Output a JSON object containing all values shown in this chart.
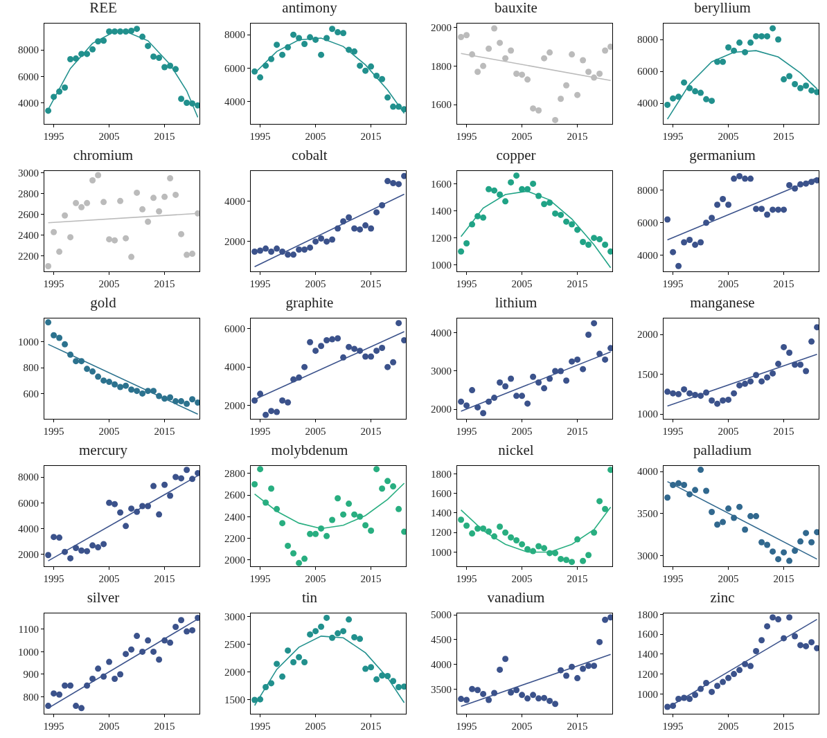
{
  "chart_data": [
    {
      "type": "scatter",
      "title": "REE",
      "x": [
        1994,
        1995,
        1996,
        1997,
        1998,
        1999,
        2000,
        2001,
        2002,
        2003,
        2004,
        2005,
        2006,
        2007,
        2008,
        2009,
        2010,
        2011,
        2012,
        2013,
        2014,
        2015,
        2016,
        2017,
        2018,
        2019,
        2020,
        2021
      ],
      "xlim": [
        1993.3,
        2021.3
      ],
      "xticks": [
        1995,
        2005,
        2015
      ],
      "ylim": [
        2400,
        10000
      ],
      "yticks": [
        4000,
        6000,
        8000
      ],
      "series": [
        {
          "marker": "circle",
          "color": "#21908d",
          "values": [
            3400,
            4450,
            4850,
            5150,
            7300,
            7350,
            7700,
            7700,
            8050,
            8650,
            8700,
            9400,
            9400,
            9400,
            9400,
            9450,
            9600,
            9000,
            8300,
            7500,
            7400,
            6700,
            6800,
            6550,
            4300,
            4000,
            3950,
            3800
          ]
        },
        {
          "type": "line",
          "color": "#21908d",
          "x": [
            1994,
            1998,
            2002,
            2006,
            2008,
            2012,
            2016,
            2019,
            2021
          ],
          "values": [
            3500,
            6600,
            8500,
            9400,
            9400,
            8700,
            6900,
            4900,
            2900
          ]
        }
      ]
    },
    {
      "type": "scatter",
      "title": "antimony",
      "x": [
        1994,
        1995,
        1996,
        1997,
        1998,
        1999,
        2000,
        2001,
        2002,
        2003,
        2004,
        2005,
        2006,
        2007,
        2008,
        2009,
        2010,
        2011,
        2012,
        2013,
        2014,
        2015,
        2016,
        2017,
        2018,
        2019,
        2020,
        2021
      ],
      "xlim": [
        1993.3,
        2021.3
      ],
      "xticks": [
        1995,
        2005,
        2015
      ],
      "ylim": [
        2670,
        8670
      ],
      "yticks": [
        4000,
        6000,
        8000
      ],
      "series": [
        {
          "marker": "circle",
          "color": "#21908d",
          "values": [
            5800,
            5450,
            6150,
            6550,
            7400,
            6800,
            7250,
            8000,
            7800,
            7450,
            7850,
            7700,
            6800,
            7800,
            8350,
            8150,
            8100,
            7100,
            7000,
            6150,
            5850,
            6100,
            5550,
            5350,
            4250,
            3700,
            3700,
            3550
          ]
        },
        {
          "type": "line",
          "color": "#21908d",
          "x": [
            1994,
            1998,
            2002,
            2006,
            2010,
            2014,
            2018,
            2021
          ],
          "values": [
            5700,
            7000,
            7700,
            7800,
            7300,
            6200,
            4700,
            3300
          ]
        }
      ]
    },
    {
      "type": "scatter",
      "title": "bauxite",
      "x": [
        1994,
        1995,
        1996,
        1997,
        1998,
        1999,
        2000,
        2001,
        2002,
        2003,
        2004,
        2005,
        2006,
        2007,
        2008,
        2009,
        2010,
        2011,
        2012,
        2013,
        2014,
        2015,
        2016,
        2017,
        2018,
        2019,
        2020,
        2021
      ],
      "xlim": [
        1993.3,
        2021.3
      ],
      "xticks": [
        1995,
        2005,
        2015
      ],
      "ylim": [
        1500,
        2020
      ],
      "yticks": [
        1600,
        1800,
        2000
      ],
      "series": [
        {
          "marker": "circle",
          "color": "#bbbbbb",
          "values": [
            1950,
            1960,
            1860,
            1770,
            1800,
            1890,
            1995,
            1920,
            1840,
            1880,
            1760,
            1755,
            1730,
            1580,
            1570,
            1840,
            1870,
            1520,
            1630,
            1700,
            1860,
            1650,
            1830,
            1770,
            1740,
            1760,
            1880,
            1900
          ]
        },
        {
          "type": "line",
          "color": "#bbbbbb",
          "x": [
            1994,
            2021
          ],
          "values": [
            1865,
            1725
          ]
        }
      ]
    },
    {
      "type": "scatter",
      "title": "beryllium",
      "x": [
        1994,
        1995,
        1996,
        1997,
        1998,
        1999,
        2000,
        2001,
        2002,
        2003,
        2004,
        2005,
        2006,
        2007,
        2008,
        2009,
        2010,
        2011,
        2012,
        2013,
        2014,
        2015,
        2016,
        2017,
        2018,
        2019,
        2020,
        2021
      ],
      "xlim": [
        1993.3,
        2021.3
      ],
      "xticks": [
        1995,
        2005,
        2015
      ],
      "ylim": [
        2700,
        9000
      ],
      "yticks": [
        4000,
        6000,
        8000
      ],
      "series": [
        {
          "marker": "circle",
          "color": "#21908d",
          "values": [
            3900,
            4300,
            4400,
            5300,
            4950,
            4750,
            4650,
            4250,
            4150,
            6600,
            6600,
            7500,
            7300,
            7800,
            7200,
            7800,
            8200,
            8200,
            8200,
            8700,
            8000,
            5500,
            5700,
            5200,
            4950,
            5100,
            4800,
            4700
          ]
        },
        {
          "type": "line",
          "color": "#21908d",
          "x": [
            1994,
            1998,
            2002,
            2006,
            2010,
            2014,
            2018,
            2021
          ],
          "values": [
            3000,
            5200,
            6600,
            7200,
            7300,
            6900,
            5900,
            4900
          ]
        }
      ]
    },
    {
      "type": "scatter",
      "title": "chromium",
      "x": [
        1994,
        1995,
        1996,
        1997,
        1998,
        1999,
        2000,
        2001,
        2002,
        2003,
        2004,
        2005,
        2006,
        2007,
        2008,
        2009,
        2010,
        2011,
        2012,
        2013,
        2014,
        2015,
        2016,
        2017,
        2018,
        2019,
        2020,
        2021
      ],
      "xlim": [
        1993.3,
        2021.3
      ],
      "xticks": [
        1995,
        2005,
        2015
      ],
      "ylim": [
        2050,
        3020
      ],
      "yticks": [
        2200,
        2400,
        2600,
        2800,
        3000
      ],
      "series": [
        {
          "marker": "circle",
          "color": "#bbbbbb",
          "values": [
            2100,
            2430,
            2240,
            2590,
            2380,
            2710,
            2670,
            2710,
            2930,
            2980,
            2720,
            2360,
            2350,
            2730,
            2370,
            2190,
            2810,
            2650,
            2530,
            2760,
            2630,
            2770,
            2950,
            2790,
            2410,
            2210,
            2220,
            2610
          ]
        },
        {
          "type": "line",
          "color": "#bbbbbb",
          "x": [
            1994,
            2021
          ],
          "values": [
            2520,
            2610
          ]
        }
      ]
    },
    {
      "type": "scatter",
      "title": "cobalt",
      "x": [
        1994,
        1995,
        1996,
        1997,
        1998,
        1999,
        2000,
        2001,
        2002,
        2003,
        2004,
        2005,
        2006,
        2007,
        2008,
        2009,
        2010,
        2011,
        2012,
        2013,
        2014,
        2015,
        2016,
        2017,
        2018,
        2019,
        2020,
        2021
      ],
      "xlim": [
        1993.3,
        2021.3
      ],
      "xticks": [
        1995,
        2005,
        2015
      ],
      "ylim": [
        520,
        5500
      ],
      "yticks": [
        2000,
        4000
      ],
      "series": [
        {
          "marker": "circle",
          "color": "#3b528b",
          "values": [
            1500,
            1550,
            1650,
            1500,
            1650,
            1500,
            1350,
            1350,
            1600,
            1600,
            1700,
            2000,
            2150,
            2000,
            2100,
            2650,
            3000,
            3200,
            2650,
            2600,
            2800,
            2650,
            3450,
            3800,
            5000,
            4900,
            4850,
            5250
          ]
        },
        {
          "type": "line",
          "color": "#3b528b",
          "x": [
            1994,
            2021
          ],
          "values": [
            750,
            4350
          ]
        }
      ]
    },
    {
      "type": "scatter",
      "title": "copper",
      "x": [
        1994,
        1995,
        1996,
        1997,
        1998,
        1999,
        2000,
        2001,
        2002,
        2003,
        2004,
        2005,
        2006,
        2007,
        2008,
        2009,
        2010,
        2011,
        2012,
        2013,
        2014,
        2015,
        2016,
        2017,
        2018,
        2019,
        2020,
        2021
      ],
      "xlim": [
        1993.3,
        2021.3
      ],
      "xticks": [
        1995,
        2005,
        2015
      ],
      "ylim": [
        953,
        1694
      ],
      "yticks": [
        1000,
        1200,
        1400,
        1600
      ],
      "series": [
        {
          "marker": "circle",
          "color": "#20a386",
          "values": [
            1100,
            1160,
            1300,
            1360,
            1350,
            1560,
            1550,
            1520,
            1470,
            1610,
            1660,
            1560,
            1560,
            1600,
            1510,
            1450,
            1460,
            1380,
            1370,
            1320,
            1300,
            1260,
            1170,
            1150,
            1200,
            1190,
            1150,
            1100
          ]
        },
        {
          "type": "line",
          "color": "#20a386",
          "x": [
            1994,
            1998,
            2002,
            2006,
            2010,
            2014,
            2018,
            2021
          ],
          "values": [
            1210,
            1420,
            1520,
            1545,
            1480,
            1340,
            1150,
            980
          ]
        }
      ]
    },
    {
      "type": "scatter",
      "title": "germanium",
      "x": [
        1994,
        1995,
        1996,
        1997,
        1998,
        1999,
        2000,
        2001,
        2002,
        2003,
        2004,
        2005,
        2006,
        2007,
        2008,
        2009,
        2010,
        2011,
        2012,
        2013,
        2014,
        2015,
        2016,
        2017,
        2018,
        2019,
        2020,
        2021
      ],
      "xlim": [
        1993.3,
        2021.3
      ],
      "xticks": [
        1995,
        2005,
        2015
      ],
      "ylim": [
        3020,
        9170
      ],
      "yticks": [
        4000,
        6000,
        8000
      ],
      "series": [
        {
          "marker": "circle",
          "color": "#3b528b",
          "values": [
            6200,
            4200,
            3350,
            4800,
            4950,
            4650,
            4800,
            6000,
            6300,
            7100,
            7450,
            7100,
            8700,
            8850,
            8700,
            8700,
            6850,
            6850,
            6500,
            6800,
            6800,
            6800,
            8300,
            8100,
            8350,
            8400,
            8500,
            8600
          ]
        },
        {
          "type": "line",
          "color": "#3b528b",
          "x": [
            1994,
            2021
          ],
          "values": [
            4950,
            8750
          ]
        }
      ]
    },
    {
      "type": "scatter",
      "title": "gold",
      "x": [
        1994,
        1995,
        1996,
        1997,
        1998,
        1999,
        2000,
        2001,
        2002,
        2003,
        2004,
        2005,
        2006,
        2007,
        2008,
        2009,
        2010,
        2011,
        2012,
        2013,
        2014,
        2015,
        2016,
        2017,
        2018,
        2019,
        2020,
        2021
      ],
      "xlim": [
        1993.3,
        2021.3
      ],
      "xticks": [
        1995,
        2005,
        2015
      ],
      "ylim": [
        404,
        1180
      ],
      "yticks": [
        600,
        800,
        1000
      ],
      "series": [
        {
          "marker": "circle",
          "color": "#2c728e",
          "values": [
            1150,
            1050,
            1030,
            980,
            900,
            850,
            850,
            790,
            770,
            730,
            700,
            690,
            670,
            650,
            660,
            630,
            620,
            600,
            620,
            620,
            580,
            560,
            570,
            540,
            540,
            520,
            555,
            530
          ]
        },
        {
          "type": "line",
          "color": "#2c728e",
          "x": [
            1994,
            2021
          ],
          "values": [
            980,
            440
          ]
        }
      ]
    },
    {
      "type": "scatter",
      "title": "graphite",
      "x": [
        1994,
        1995,
        1996,
        1997,
        1998,
        1999,
        2000,
        2001,
        2002,
        2003,
        2004,
        2005,
        2006,
        2007,
        2008,
        2009,
        2010,
        2011,
        2012,
        2013,
        2014,
        2015,
        2016,
        2017,
        2018,
        2019,
        2020,
        2021
      ],
      "xlim": [
        1993.3,
        2021.3
      ],
      "xticks": [
        1995,
        2005,
        2015
      ],
      "ylim": [
        1290,
        6540
      ],
      "yticks": [
        2000,
        4000,
        6000
      ],
      "series": [
        {
          "marker": "circle",
          "color": "#3b528b",
          "values": [
            2250,
            2600,
            1500,
            1700,
            1650,
            2250,
            2150,
            3350,
            3450,
            4000,
            5300,
            4850,
            5100,
            5400,
            5450,
            5500,
            4500,
            5050,
            4950,
            4850,
            4550,
            4550,
            4850,
            5000,
            4000,
            4250,
            6300,
            5400
          ]
        },
        {
          "type": "line",
          "color": "#3b528b",
          "x": [
            1994,
            2021
          ],
          "values": [
            2300,
            5850
          ]
        }
      ]
    },
    {
      "type": "scatter",
      "title": "lithium",
      "x": [
        1994,
        1995,
        1996,
        1997,
        1998,
        1999,
        2000,
        2001,
        2002,
        2003,
        2004,
        2005,
        2006,
        2007,
        2008,
        2009,
        2010,
        2011,
        2012,
        2013,
        2014,
        2015,
        2016,
        2017,
        2018,
        2019,
        2020,
        2021
      ],
      "xlim": [
        1993.3,
        2021.3
      ],
      "xticks": [
        1995,
        2005,
        2015
      ],
      "ylim": [
        1750,
        4375
      ],
      "yticks": [
        2000,
        3000,
        4000
      ],
      "series": [
        {
          "marker": "circle",
          "color": "#3b528b",
          "values": [
            2200,
            2100,
            2500,
            2050,
            1900,
            2200,
            2300,
            2700,
            2600,
            2800,
            2350,
            2350,
            2150,
            2850,
            2700,
            2550,
            2800,
            3000,
            3000,
            2750,
            3250,
            3300,
            3050,
            3950,
            4250,
            3450,
            3300,
            3600
          ]
        },
        {
          "type": "line",
          "color": "#3b528b",
          "x": [
            1994,
            2021
          ],
          "values": [
            1950,
            3500
          ]
        }
      ]
    },
    {
      "type": "scatter",
      "title": "manganese",
      "x": [
        1994,
        1995,
        1996,
        1997,
        1998,
        1999,
        2000,
        2001,
        2002,
        2003,
        2004,
        2005,
        2006,
        2007,
        2008,
        2009,
        2010,
        2011,
        2012,
        2013,
        2014,
        2015,
        2016,
        2017,
        2018,
        2019,
        2020,
        2021
      ],
      "xlim": [
        1993.3,
        2021.3
      ],
      "xticks": [
        1995,
        2005,
        2015
      ],
      "ylim": [
        940,
        2200
      ],
      "yticks": [
        1000,
        1500,
        2000
      ],
      "series": [
        {
          "marker": "circle",
          "color": "#3b528b",
          "values": [
            1280,
            1260,
            1250,
            1310,
            1260,
            1240,
            1230,
            1270,
            1170,
            1130,
            1170,
            1180,
            1260,
            1360,
            1380,
            1410,
            1490,
            1410,
            1460,
            1510,
            1630,
            1840,
            1770,
            1620,
            1620,
            1540,
            1910,
            2090
          ]
        },
        {
          "type": "line",
          "color": "#3b528b",
          "x": [
            1994,
            2021
          ],
          "values": [
            1100,
            1750
          ]
        }
      ]
    },
    {
      "type": "scatter",
      "title": "mercury",
      "x": [
        1994,
        1995,
        1996,
        1997,
        1998,
        1999,
        2000,
        2001,
        2002,
        2003,
        2004,
        2005,
        2006,
        2007,
        2008,
        2009,
        2010,
        2011,
        2012,
        2013,
        2014,
        2015,
        2016,
        2017,
        2018,
        2019,
        2020,
        2021
      ],
      "xlim": [
        1993.3,
        2021.3
      ],
      "xticks": [
        1995,
        2005,
        2015
      ],
      "ylim": [
        1080,
        8860
      ],
      "yticks": [
        2000,
        4000,
        6000,
        8000
      ],
      "series": [
        {
          "marker": "circle",
          "color": "#3b528b",
          "values": [
            1950,
            3350,
            3300,
            2200,
            1700,
            2500,
            2300,
            2250,
            2700,
            2550,
            2800,
            6000,
            5900,
            5250,
            4200,
            5550,
            5300,
            5750,
            5750,
            7300,
            5100,
            7400,
            6550,
            8000,
            7900,
            8550,
            7850,
            8300
          ]
        },
        {
          "type": "line",
          "color": "#3b528b",
          "x": [
            1994,
            2021
          ],
          "values": [
            1500,
            8100
          ]
        }
      ]
    },
    {
      "type": "scatter",
      "title": "molybdenum",
      "x": [
        1994,
        1995,
        1996,
        1997,
        1998,
        1999,
        2000,
        2001,
        2002,
        2003,
        2004,
        2005,
        2006,
        2007,
        2008,
        2009,
        2010,
        2011,
        2012,
        2013,
        2014,
        2015,
        2016,
        2017,
        2018,
        2019,
        2020,
        2021
      ],
      "xlim": [
        1993.3,
        2021.3
      ],
      "xticks": [
        1995,
        2005,
        2015
      ],
      "ylim": [
        1940,
        2870
      ],
      "yticks": [
        2000,
        2200,
        2400,
        2600,
        2800
      ],
      "series": [
        {
          "marker": "circle",
          "color": "#28ae80",
          "values": [
            2700,
            2840,
            2530,
            2660,
            2470,
            2340,
            2130,
            2060,
            1970,
            2010,
            2240,
            2240,
            2290,
            2220,
            2370,
            2570,
            2420,
            2520,
            2420,
            2400,
            2320,
            2270,
            2840,
            2660,
            2730,
            2680,
            2470,
            2260
          ]
        },
        {
          "type": "line",
          "color": "#28ae80",
          "x": [
            1994,
            1998,
            2002,
            2006,
            2010,
            2014,
            2018,
            2021
          ],
          "values": [
            2610,
            2450,
            2340,
            2290,
            2320,
            2410,
            2560,
            2710
          ]
        }
      ]
    },
    {
      "type": "scatter",
      "title": "nickel",
      "x": [
        1994,
        1995,
        1996,
        1997,
        1998,
        1999,
        2000,
        2001,
        2002,
        2003,
        2004,
        2005,
        2006,
        2007,
        2008,
        2009,
        2010,
        2011,
        2012,
        2013,
        2014,
        2015,
        2016,
        2017,
        2018,
        2019,
        2020,
        2021
      ],
      "xlim": [
        1993.3,
        2021.3
      ],
      "xticks": [
        1995,
        2005,
        2015
      ],
      "ylim": [
        855,
        1880
      ],
      "yticks": [
        1000,
        1200,
        1400,
        1600,
        1800
      ],
      "series": [
        {
          "marker": "circle",
          "color": "#28ae80",
          "values": [
            1330,
            1270,
            1190,
            1240,
            1240,
            1210,
            1160,
            1260,
            1200,
            1150,
            1120,
            1080,
            1030,
            1010,
            1060,
            1040,
            990,
            990,
            930,
            920,
            900,
            1130,
            910,
            970,
            1200,
            1520,
            1440,
            1840
          ]
        },
        {
          "type": "line",
          "color": "#28ae80",
          "x": [
            1994,
            1998,
            2002,
            2006,
            2010,
            2014,
            2018,
            2021
          ],
          "values": [
            1430,
            1220,
            1080,
            1000,
            1000,
            1080,
            1230,
            1460
          ]
        }
      ]
    },
    {
      "type": "scatter",
      "title": "palladium",
      "x": [
        1994,
        1995,
        1996,
        1997,
        1998,
        1999,
        2000,
        2001,
        2002,
        2003,
        2004,
        2005,
        2006,
        2007,
        2008,
        2009,
        2010,
        2011,
        2012,
        2013,
        2014,
        2015,
        2016,
        2017,
        2018,
        2019,
        2020,
        2021
      ],
      "xlim": [
        1993.3,
        2021.3
      ],
      "xticks": [
        1995,
        2005,
        2015
      ],
      "ylim": [
        2875,
        4066
      ],
      "yticks": [
        3000,
        3500,
        4000
      ],
      "series": [
        {
          "marker": "circle",
          "color": "#31688e",
          "values": [
            3690,
            3840,
            3860,
            3840,
            3730,
            3780,
            4020,
            3770,
            3520,
            3370,
            3400,
            3560,
            3450,
            3580,
            3310,
            3470,
            3470,
            3160,
            3130,
            3050,
            2960,
            3040,
            2940,
            3060,
            3170,
            3270,
            3160,
            3280
          ]
        },
        {
          "type": "line",
          "color": "#31688e",
          "x": [
            1994,
            2021
          ],
          "values": [
            3880,
            2960
          ]
        }
      ]
    },
    {
      "type": "scatter",
      "title": "silver",
      "x": [
        1994,
        1995,
        1996,
        1997,
        1998,
        1999,
        2000,
        2001,
        2002,
        2003,
        2004,
        2005,
        2006,
        2007,
        2008,
        2009,
        2010,
        2011,
        2012,
        2013,
        2014,
        2015,
        2016,
        2017,
        2018,
        2019,
        2020,
        2021
      ],
      "xlim": [
        1993.3,
        2021.3
      ],
      "xticks": [
        1995,
        2005,
        2015
      ],
      "ylim": [
        725,
        1170
      ],
      "yticks": [
        800,
        900,
        1000,
        1100
      ],
      "series": [
        {
          "marker": "circle",
          "color": "#3b528b",
          "values": [
            760,
            815,
            810,
            850,
            850,
            760,
            750,
            850,
            880,
            925,
            890,
            955,
            880,
            900,
            990,
            1010,
            1070,
            1000,
            1050,
            1000,
            965,
            1050,
            1040,
            1110,
            1140,
            1090,
            1095,
            1150
          ]
        },
        {
          "type": "line",
          "color": "#3b528b",
          "x": [
            1994,
            2021
          ],
          "values": [
            750,
            1145
          ]
        }
      ]
    },
    {
      "type": "scatter",
      "title": "tin",
      "x": [
        1994,
        1995,
        1996,
        1997,
        1998,
        1999,
        2000,
        2001,
        2002,
        2003,
        2004,
        2005,
        2006,
        2007,
        2008,
        2009,
        2010,
        2011,
        2012,
        2013,
        2014,
        2015,
        2016,
        2017,
        2018,
        2019,
        2020,
        2021
      ],
      "xlim": [
        1993.3,
        2021.3
      ],
      "xticks": [
        1995,
        2005,
        2015
      ],
      "ylim": [
        1250,
        3060
      ],
      "yticks": [
        1500,
        2000,
        2500,
        3000
      ],
      "series": [
        {
          "marker": "circle",
          "color": "#21908d",
          "values": [
            1500,
            1510,
            1730,
            1800,
            2150,
            1920,
            2390,
            2180,
            2270,
            2180,
            2680,
            2740,
            2820,
            2980,
            2620,
            2700,
            2740,
            2950,
            2630,
            2600,
            2060,
            2090,
            1870,
            1940,
            1930,
            1840,
            1730,
            1740
          ]
        },
        {
          "type": "line",
          "color": "#21908d",
          "x": [
            1994,
            1998,
            2002,
            2006,
            2010,
            2014,
            2018,
            2021
          ],
          "values": [
            1400,
            2050,
            2450,
            2650,
            2620,
            2350,
            1900,
            1450
          ]
        }
      ]
    },
    {
      "type": "scatter",
      "title": "vanadium",
      "x": [
        1994,
        1995,
        1996,
        1997,
        1998,
        1999,
        2000,
        2001,
        2002,
        2003,
        2004,
        2005,
        2006,
        2007,
        2008,
        2009,
        2010,
        2011,
        2012,
        2013,
        2014,
        2015,
        2016,
        2017,
        2018,
        2019,
        2020,
        2021
      ],
      "xlim": [
        1993.3,
        2021.3
      ],
      "xticks": [
        1995,
        2005,
        2015
      ],
      "ylim": [
        3000,
        5030
      ],
      "yticks": [
        3500,
        4000,
        4500,
        5000
      ],
      "series": [
        {
          "marker": "circle",
          "color": "#3b528b",
          "values": [
            3300,
            3280,
            3500,
            3480,
            3400,
            3280,
            3420,
            3890,
            4110,
            3430,
            3480,
            3380,
            3310,
            3380,
            3310,
            3320,
            3260,
            3200,
            3880,
            3770,
            3950,
            3720,
            3910,
            3970,
            3970,
            4450,
            4900,
            4950
          ]
        },
        {
          "type": "line",
          "color": "#3b528b",
          "x": [
            1994,
            2021
          ],
          "values": [
            3150,
            4200
          ]
        }
      ]
    },
    {
      "type": "scatter",
      "title": "zinc",
      "x": [
        1994,
        1995,
        1996,
        1997,
        1998,
        1999,
        2000,
        2001,
        2002,
        2003,
        2004,
        2005,
        2006,
        2007,
        2008,
        2009,
        2010,
        2011,
        2012,
        2013,
        2014,
        2015,
        2016,
        2017,
        2018,
        2019,
        2020,
        2021
      ],
      "xlim": [
        1993.3,
        2021.3
      ],
      "xticks": [
        1995,
        2005,
        2015
      ],
      "ylim": [
        800,
        1810
      ],
      "yticks": [
        1000,
        1200,
        1400,
        1600,
        1800
      ],
      "series": [
        {
          "marker": "circle",
          "color": "#3b528b",
          "values": [
            870,
            880,
            950,
            960,
            950,
            990,
            1050,
            1110,
            1020,
            1080,
            1120,
            1160,
            1200,
            1240,
            1300,
            1280,
            1430,
            1540,
            1680,
            1770,
            1750,
            1560,
            1770,
            1580,
            1490,
            1480,
            1520,
            1460
          ]
        },
        {
          "type": "line",
          "color": "#3b528b",
          "x": [
            1994,
            2021
          ],
          "values": [
            860,
            1750
          ]
        }
      ]
    }
  ]
}
